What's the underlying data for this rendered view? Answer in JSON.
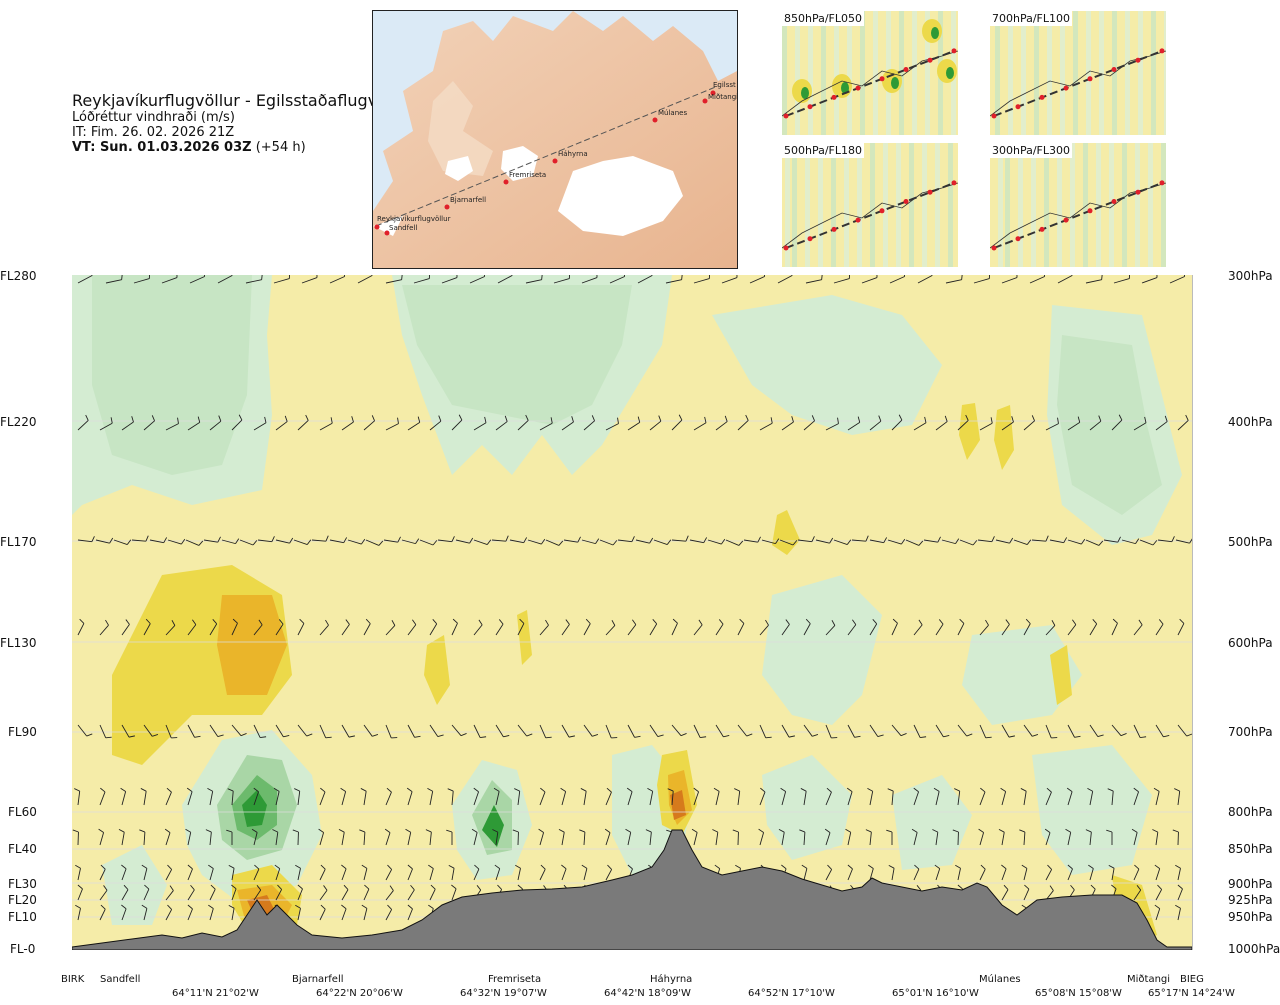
{
  "header": {
    "title": "Reykjavíkurflugvöllur - Egilsstaðaflugvöllur",
    "subtitle": "Lóðréttur vindhraði (m/s)",
    "it": "IT: Fim. 26. 02. 2026 21Z",
    "vt_bold": "VT: Sun. 01.03.2026 03Z",
    "vt_suffix": "(+54 h)"
  },
  "route_map": {
    "places": [
      {
        "name": "Reykjavíkurflugvöllur"
      },
      {
        "name": "Sandfell"
      },
      {
        "name": "Bjarnarfell"
      },
      {
        "name": "Fremriseta"
      },
      {
        "name": "Háhyrna"
      },
      {
        "name": "Múlanes"
      },
      {
        "name": "Miðtangi"
      },
      {
        "name": "Egilsst"
      }
    ]
  },
  "level_maps": [
    {
      "label": "850hPa/FL050"
    },
    {
      "label": "700hPa/FL100"
    },
    {
      "label": "500hPa/FL180"
    },
    {
      "label": "300hPa/FL300"
    }
  ],
  "levels": [
    {
      "fl": "FL280",
      "hpa": "300hPa"
    },
    {
      "fl": "FL220",
      "hpa": "400hPa"
    },
    {
      "fl": "FL170",
      "hpa": "500hPa"
    },
    {
      "fl": "FL130",
      "hpa": "600hPa"
    },
    {
      "fl": "FL90",
      "hpa": "700hPa"
    },
    {
      "fl": "FL60",
      "hpa": "800hPa"
    },
    {
      "fl": "FL40",
      "hpa": "850hPa"
    },
    {
      "fl": "FL30",
      "hpa": "900hPa"
    },
    {
      "fl": "FL20",
      "hpa": "925hPa"
    },
    {
      "fl": "FL10",
      "hpa": "950hPa"
    },
    {
      "fl": "FL-0",
      "hpa": "1000hPa"
    }
  ],
  "stations": [
    {
      "name": "BIRK"
    },
    {
      "name": "Sandfell"
    },
    {
      "name": "Bjarnarfell"
    },
    {
      "name": "Fremriseta"
    },
    {
      "name": "Háhyrna"
    },
    {
      "name": "Múlanes"
    },
    {
      "name": "Miðtangi"
    },
    {
      "name": "BIEG"
    }
  ],
  "coords": [
    {
      "text": "64°11'N 21°02'W"
    },
    {
      "text": "64°22'N 20°06'W"
    },
    {
      "text": "64°32'N 19°07'W"
    },
    {
      "text": "64°42'N 18°09'W"
    },
    {
      "text": "64°52'N 17°10'W"
    },
    {
      "text": "65°01'N 16°10'W"
    },
    {
      "text": "65°08'N 15°08'W"
    },
    {
      "text": "65°17'N 14°24'W"
    }
  ],
  "colors": {
    "pale_yellow": "#f5eca8",
    "yellow": "#ecd94a",
    "orange": "#eab52a",
    "dark_orange": "#d67a1c",
    "pale_green": "#d4ecd2",
    "light_green": "#a9d6a6",
    "mid_green": "#6cba6c",
    "dark_green": "#2e9a36",
    "terrain": "#7a7a7a"
  }
}
